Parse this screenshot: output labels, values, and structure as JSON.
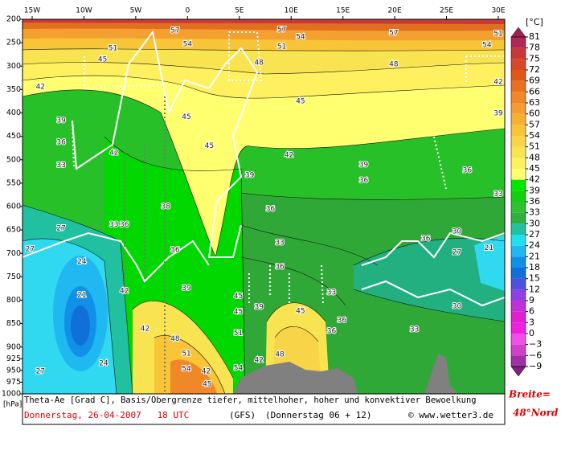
{
  "chart_data": {
    "type": "contour",
    "xlim": [
      -15.93,
      30.62
    ],
    "xticks": [
      {
        "value": -15,
        "label": "15W"
      },
      {
        "value": -10,
        "label": "10W"
      },
      {
        "value": -5,
        "label": "5W"
      },
      0,
      {
        "value": 5,
        "label": "5E"
      },
      {
        "value": 10,
        "label": "10E"
      },
      {
        "value": 15,
        "label": "15E"
      },
      {
        "value": 20,
        "label": "20E"
      },
      {
        "value": 25,
        "label": "25E"
      },
      {
        "value": 30,
        "label": "30E"
      }
    ],
    "ylim": [
      1000,
      200
    ],
    "yticks": [
      200,
      250,
      300,
      350,
      400,
      450,
      500,
      550,
      600,
      650,
      700,
      750,
      800,
      850,
      900,
      925,
      950,
      975,
      1000
    ],
    "y_unit": "[hPa]",
    "colorbar": {
      "title": "[°C]",
      "ticks": [
        81,
        78,
        75,
        72,
        69,
        66,
        63,
        60,
        57,
        54,
        51,
        48,
        45,
        42,
        39,
        36,
        33,
        30,
        27,
        24,
        21,
        18,
        15,
        12,
        9,
        6,
        3,
        0,
        {
          "value": -3,
          "label": "−3"
        },
        {
          "value": -6,
          "label": "−6"
        },
        {
          "value": -9,
          "label": "−9"
        }
      ],
      "band_colors": [
        "#b02858",
        "#c83838",
        "#d84828",
        "#e05818",
        "#e87020",
        "#f08828",
        "#f49c30",
        "#f8b030",
        "#f8c438",
        "#f8d448",
        "#f8e450",
        "#fff060",
        "#ffff70",
        "#00e800",
        "#10d010",
        "#30c030",
        "#30b040",
        "#20c0a0",
        "#20e0f0",
        "#20b8f0",
        "#1090e8",
        "#1070d8",
        "#5050e0",
        "#9040e0",
        "#c030d8",
        "#e020d0",
        "#f020e0",
        "#f050e8",
        "#d040c8",
        "#a030a8"
      ],
      "over_color": "#a02050",
      "under_color": "#802080"
    },
    "contour_labels": [
      {
        "lon": -14.2,
        "p": 344,
        "value": 42
      },
      {
        "lon": -12.2,
        "p": 416,
        "value": 39
      },
      {
        "lon": -12.2,
        "p": 463,
        "value": 36
      },
      {
        "lon": -12.2,
        "p": 512,
        "value": 33
      },
      {
        "lon": -12.2,
        "p": 646,
        "value": 27
      },
      {
        "lon": -15.2,
        "p": 691,
        "value": 27
      },
      {
        "lon": -10.2,
        "p": 718,
        "value": 24
      },
      {
        "lon": -10.2,
        "p": 789,
        "value": 21
      },
      {
        "lon": -8.1,
        "p": 935,
        "value": 24
      },
      {
        "lon": -14.2,
        "p": 952,
        "value": 27
      },
      {
        "lon": -7.1,
        "p": 485,
        "value": 42
      },
      {
        "lon": -7.1,
        "p": 639,
        "value": 33
      },
      {
        "lon": -6.1,
        "p": 639,
        "value": 36
      },
      {
        "lon": -6.1,
        "p": 780,
        "value": 42
      },
      {
        "lon": -4.1,
        "p": 861,
        "value": 42
      },
      {
        "lon": -1.2,
        "p": 882,
        "value": 48
      },
      {
        "lon": -0.1,
        "p": 914,
        "value": 51
      },
      {
        "lon": -0.1,
        "p": 947,
        "value": 54
      },
      {
        "lon": 1.8,
        "p": 952,
        "value": 42
      },
      {
        "lon": 1.9,
        "p": 979,
        "value": 45
      },
      {
        "lon": -2.1,
        "p": 600,
        "value": 38
      },
      {
        "lon": -1.2,
        "p": 693,
        "value": 36
      },
      {
        "lon": -0.1,
        "p": 774,
        "value": 39
      },
      {
        "lon": 2.1,
        "p": 470,
        "value": 45
      },
      {
        "lon": -0.1,
        "p": 409,
        "value": 45
      },
      {
        "lon": -1.2,
        "p": 224,
        "value": 57
      },
      {
        "lon": 0,
        "p": 253,
        "value": 54
      },
      {
        "lon": -7.2,
        "p": 262,
        "value": 51
      },
      {
        "lon": -8.2,
        "p": 286,
        "value": 45
      },
      {
        "lon": 6.9,
        "p": 293,
        "value": 48
      },
      {
        "lon": 9.1,
        "p": 222,
        "value": 57
      },
      {
        "lon": 10.9,
        "p": 238,
        "value": 54
      },
      {
        "lon": 9.1,
        "p": 258,
        "value": 51
      },
      {
        "lon": 19.9,
        "p": 229,
        "value": 57
      },
      {
        "lon": 19.9,
        "p": 296,
        "value": 48
      },
      {
        "lon": 10.9,
        "p": 375,
        "value": 45
      },
      {
        "lon": 9.8,
        "p": 490,
        "value": 42
      },
      {
        "lon": 17,
        "p": 511,
        "value": 39
      },
      {
        "lon": 17,
        "p": 544,
        "value": 36
      },
      {
        "lon": 6,
        "p": 533,
        "value": 39
      },
      {
        "lon": 8,
        "p": 605,
        "value": 36
      },
      {
        "lon": 8.9,
        "p": 677,
        "value": 33
      },
      {
        "lon": 8.9,
        "p": 729,
        "value": 36
      },
      {
        "lon": 4.9,
        "p": 791,
        "value": 45
      },
      {
        "lon": 4.9,
        "p": 825,
        "value": 45
      },
      {
        "lon": 4.9,
        "p": 870,
        "value": 51
      },
      {
        "lon": 4.9,
        "p": 945,
        "value": 54
      },
      {
        "lon": 6.9,
        "p": 928,
        "value": 42
      },
      {
        "lon": 6.9,
        "p": 815,
        "value": 39
      },
      {
        "lon": 10.9,
        "p": 823,
        "value": 45
      },
      {
        "lon": 8.9,
        "p": 916,
        "value": 48
      },
      {
        "lon": 13.9,
        "p": 784,
        "value": 33
      },
      {
        "lon": 13.9,
        "p": 866,
        "value": 36
      },
      {
        "lon": 14.9,
        "p": 843,
        "value": 36
      },
      {
        "lon": 21.9,
        "p": 863,
        "value": 33
      },
      {
        "lon": 23,
        "p": 669,
        "value": 36
      },
      {
        "lon": 26,
        "p": 653,
        "value": 30
      },
      {
        "lon": 26,
        "p": 698,
        "value": 27
      },
      {
        "lon": 26,
        "p": 813,
        "value": 30
      },
      {
        "lon": 29.1,
        "p": 688,
        "value": 21
      },
      {
        "lon": 30,
        "p": 401,
        "value": 39
      },
      {
        "lon": 30,
        "p": 334,
        "value": 42
      },
      {
        "lon": 30,
        "p": 573,
        "value": 33
      },
      {
        "lon": 27,
        "p": 523,
        "value": 36
      },
      {
        "lon": 28.9,
        "p": 255,
        "value": 54
      },
      {
        "lon": 30,
        "p": 231,
        "value": 51
      }
    ],
    "caption": "Theta-Ae [Grad C], Basis/Obergrenze tiefer, mittelhoher, hoher und konvektiver Bewoelkung",
    "date_line": "Donnerstag, 26-04-2007   18 UTC",
    "model": "(GFS)",
    "run": "(Donnerstag 06 + 12)",
    "credit": "© www.wetter3.de",
    "latitude_label": "Breite=",
    "latitude_value": "48°Nord"
  }
}
